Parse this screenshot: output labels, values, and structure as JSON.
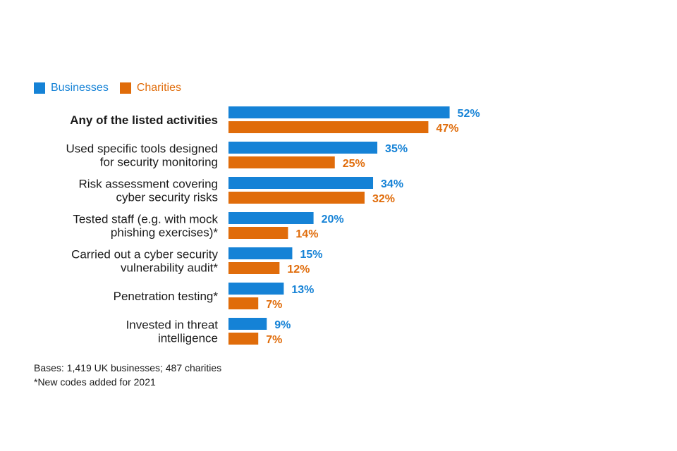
{
  "chart_data": {
    "type": "bar",
    "orientation": "horizontal",
    "categories": [
      [
        "Any of the listed activities"
      ],
      [
        "Used specific tools designed",
        "for security monitoring"
      ],
      [
        "Risk assessment covering",
        "cyber security risks"
      ],
      [
        "Tested staff (e.g. with mock",
        "phishing exercises)*"
      ],
      [
        "Carried out a cyber security",
        "vulnerability audit*"
      ],
      [
        "Penetration testing*"
      ],
      [
        "Invested in threat",
        "intelligence"
      ]
    ],
    "bold_category_index": 0,
    "series": [
      {
        "name": "Businesses",
        "color": "#1582d6",
        "values": [
          52,
          35,
          34,
          20,
          15,
          13,
          9
        ],
        "labels": [
          "52%",
          "35%",
          "34%",
          "20%",
          "15%",
          "13%",
          "9%"
        ]
      },
      {
        "name": "Charities",
        "color": "#e06c0a",
        "values": [
          47,
          25,
          32,
          14,
          12,
          7,
          7
        ],
        "labels": [
          "47%",
          "25%",
          "32%",
          "14%",
          "12%",
          "7%",
          "7%"
        ]
      }
    ],
    "xlim": [
      0,
      100
    ],
    "unit": "%",
    "legend_position": "top-left",
    "grid": false
  },
  "footnotes": {
    "bases": "Bases: 1,419 UK businesses; 487 charities",
    "new_codes": "*New codes added for 2021"
  }
}
